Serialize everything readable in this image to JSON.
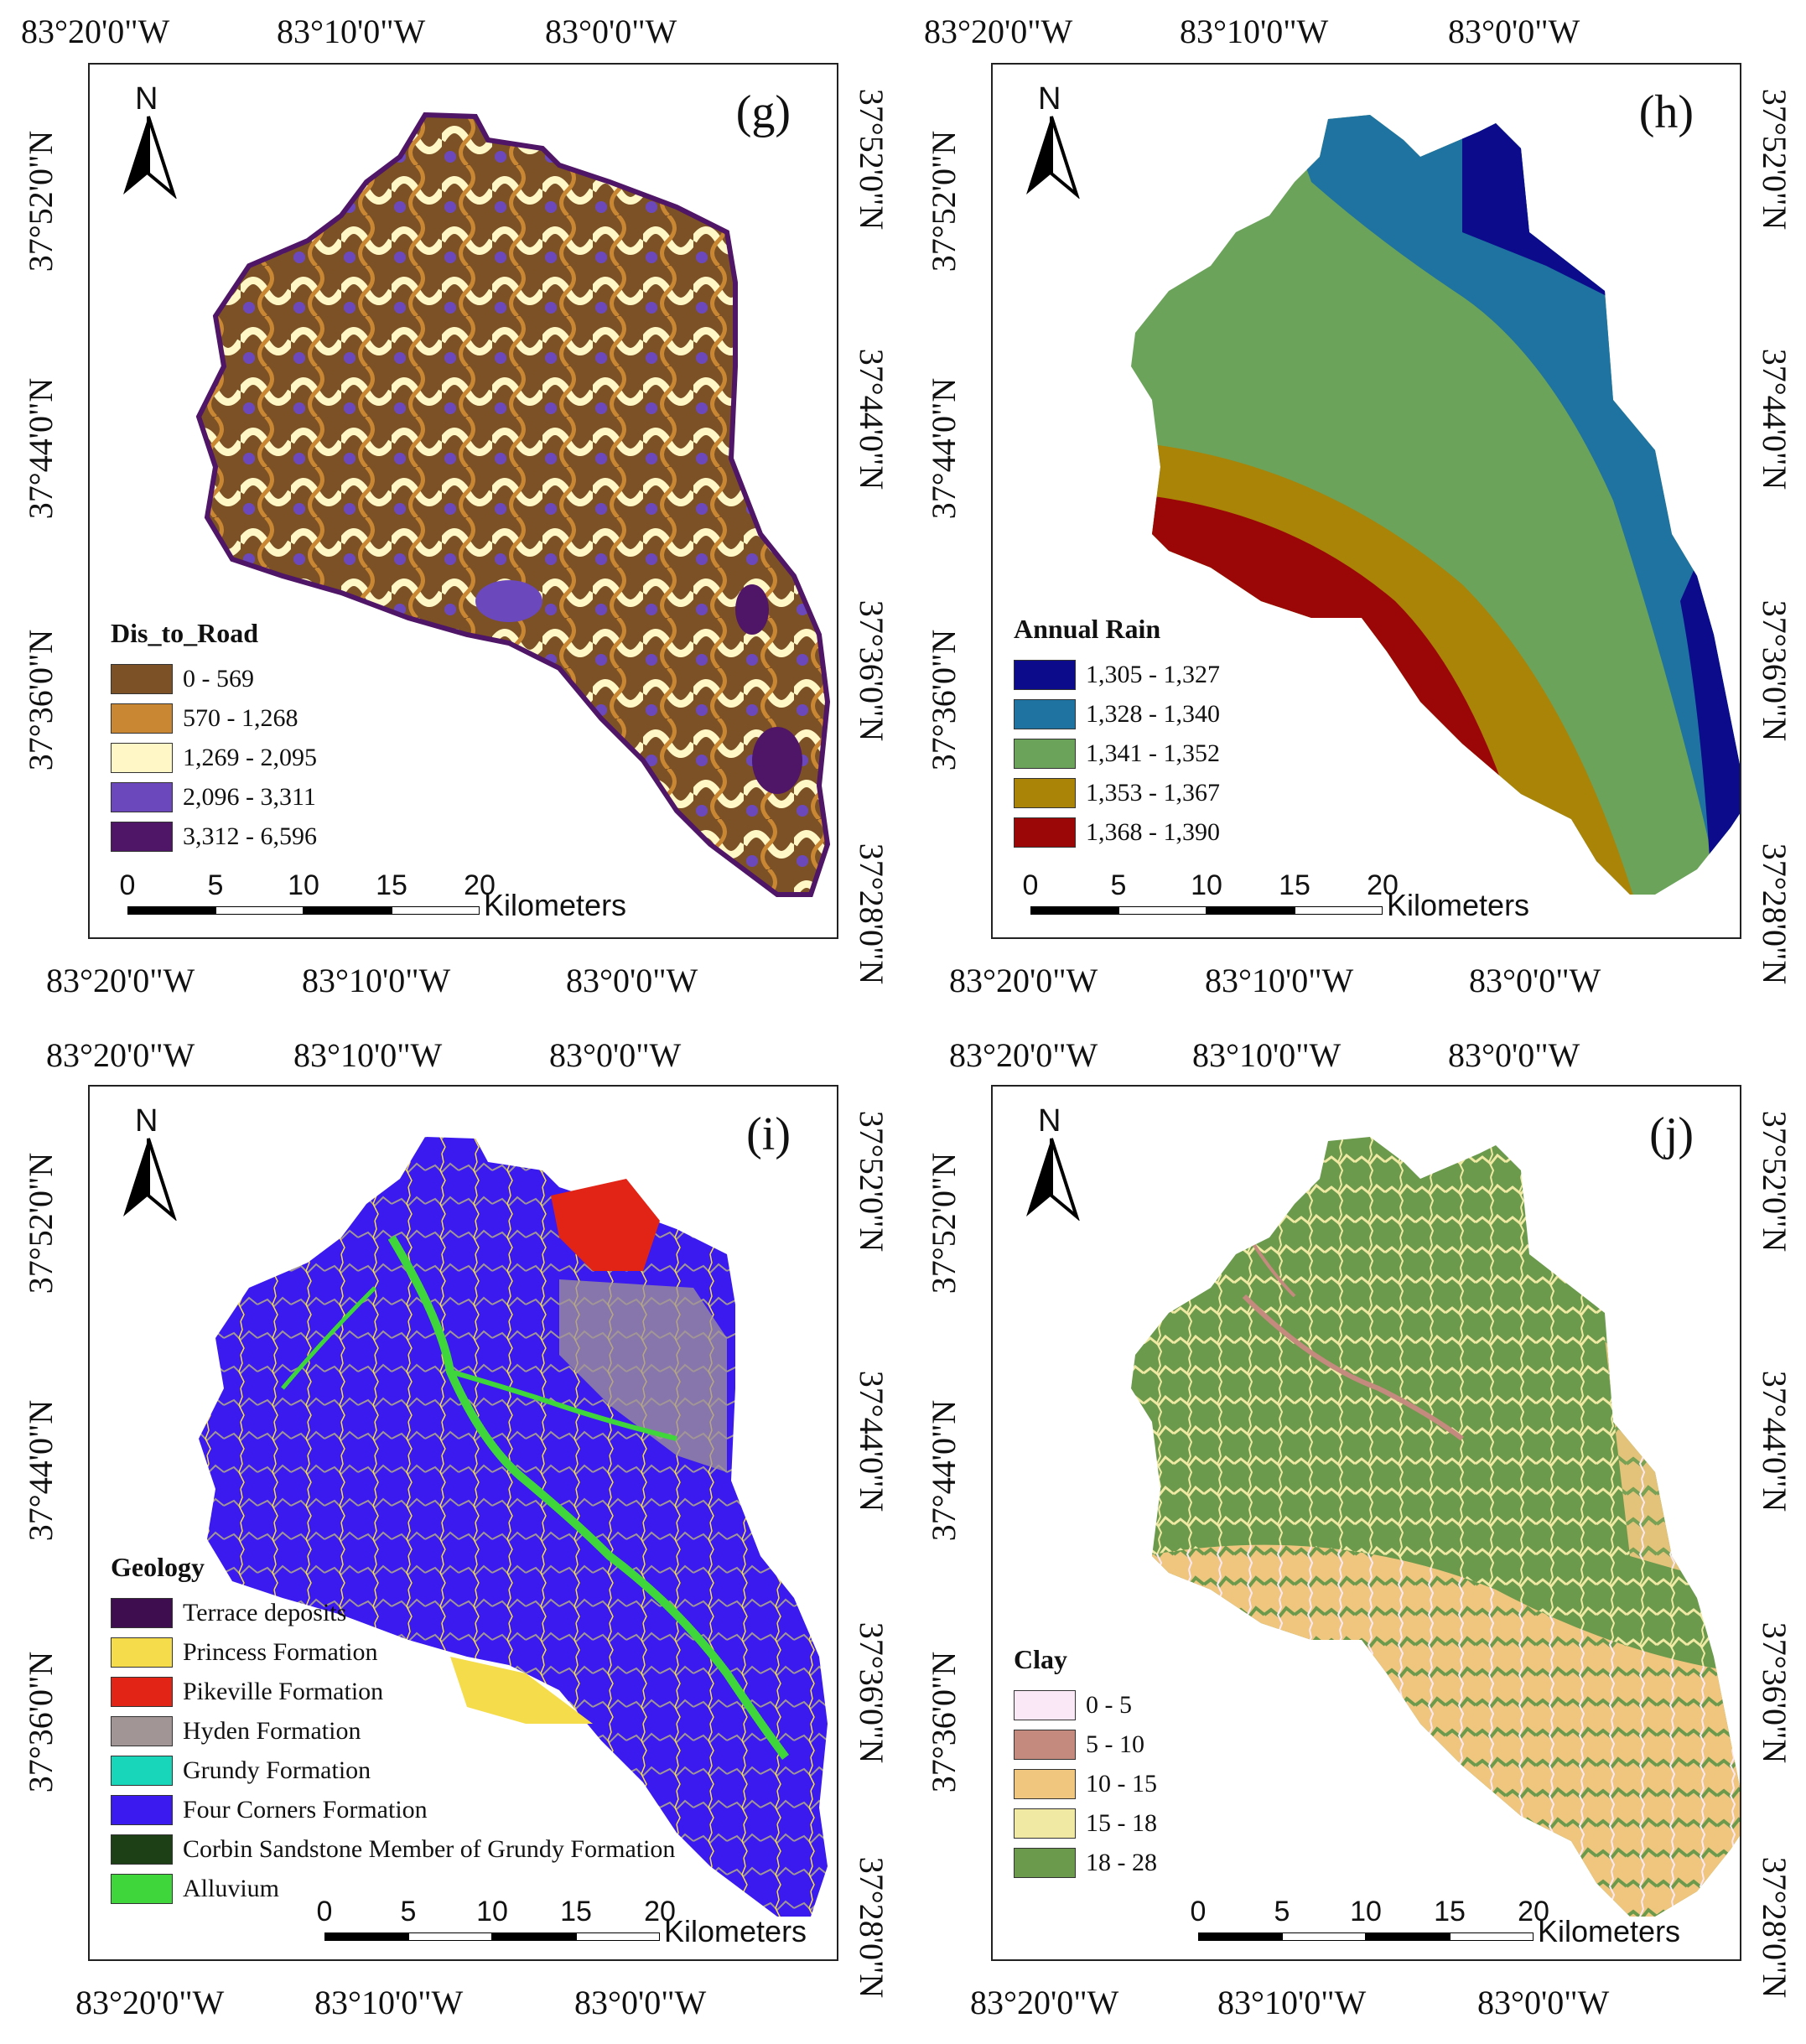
{
  "coords": {
    "top_lon": [
      "83°20'0\"W",
      "83°10'0\"W",
      "83°0'0\"W"
    ],
    "bottom_lon": [
      "83°20'0\"W",
      "83°10'0\"W",
      "83°0'0\"W"
    ],
    "left_lat": [
      "37°52'0\"N",
      "37°44'0\"N",
      "37°36'0\"N"
    ],
    "right_lat": [
      "37°52'0\"N",
      "37°44'0\"N",
      "37°36'0\"N",
      "37°28'0\"N"
    ]
  },
  "north_label": "N",
  "scale": {
    "ticks": [
      "0",
      "5",
      "10",
      "15",
      "20"
    ],
    "unit": "Kilometers"
  },
  "panels": {
    "g": {
      "letter": "(g)",
      "legend_title": "Dis_to_Road",
      "classes": [
        {
          "label": "0 - 569",
          "color": "#7b5125"
        },
        {
          "label": "570 - 1,268",
          "color": "#c98733"
        },
        {
          "label": "1,269 - 2,095",
          "color": "#fff7c5"
        },
        {
          "label": "2,096 - 3,311",
          "color": "#6b49bd"
        },
        {
          "label": "3,312 - 6,596",
          "color": "#4f1566"
        }
      ]
    },
    "h": {
      "letter": "(h)",
      "legend_title": "Annual Rain",
      "classes": [
        {
          "label": "1,305 - 1,327",
          "color": "#0b0b8c"
        },
        {
          "label": "1,328 - 1,340",
          "color": "#1e73a0"
        },
        {
          "label": "1,341 - 1,352",
          "color": "#6ba35a"
        },
        {
          "label": "1,353 - 1,367",
          "color": "#a98407"
        },
        {
          "label": "1,368 - 1,390",
          "color": "#9b0707"
        }
      ]
    },
    "i": {
      "letter": "(i)",
      "legend_title": "Geology",
      "classes": [
        {
          "label": "Terrace deposits",
          "color": "#3e0d4f"
        },
        {
          "label": "Princess Formation",
          "color": "#f4dc4a"
        },
        {
          "label": "Pikeville Formation",
          "color": "#e12416"
        },
        {
          "label": "Hyden Formation",
          "color": "#a19595"
        },
        {
          "label": "Grundy Formation",
          "color": "#17d6b9"
        },
        {
          "label": "Four Corners Formation",
          "color": "#3a1aee"
        },
        {
          "label": "Corbin Sandstone Member of Grundy Formation",
          "color": "#1e4016"
        },
        {
          "label": "Alluvium",
          "color": "#3ed63a"
        }
      ]
    },
    "j": {
      "letter": "(j)",
      "legend_title": "Clay",
      "classes": [
        {
          "label": "0 - 5",
          "color": "#fbe8f7"
        },
        {
          "label": "5 - 10",
          "color": "#c48a7e"
        },
        {
          "label": "10 - 15",
          "color": "#f0c67e"
        },
        {
          "label": "15 - 18",
          "color": "#efe9a3"
        },
        {
          "label": "18 - 28",
          "color": "#6b9a4c"
        }
      ]
    }
  }
}
